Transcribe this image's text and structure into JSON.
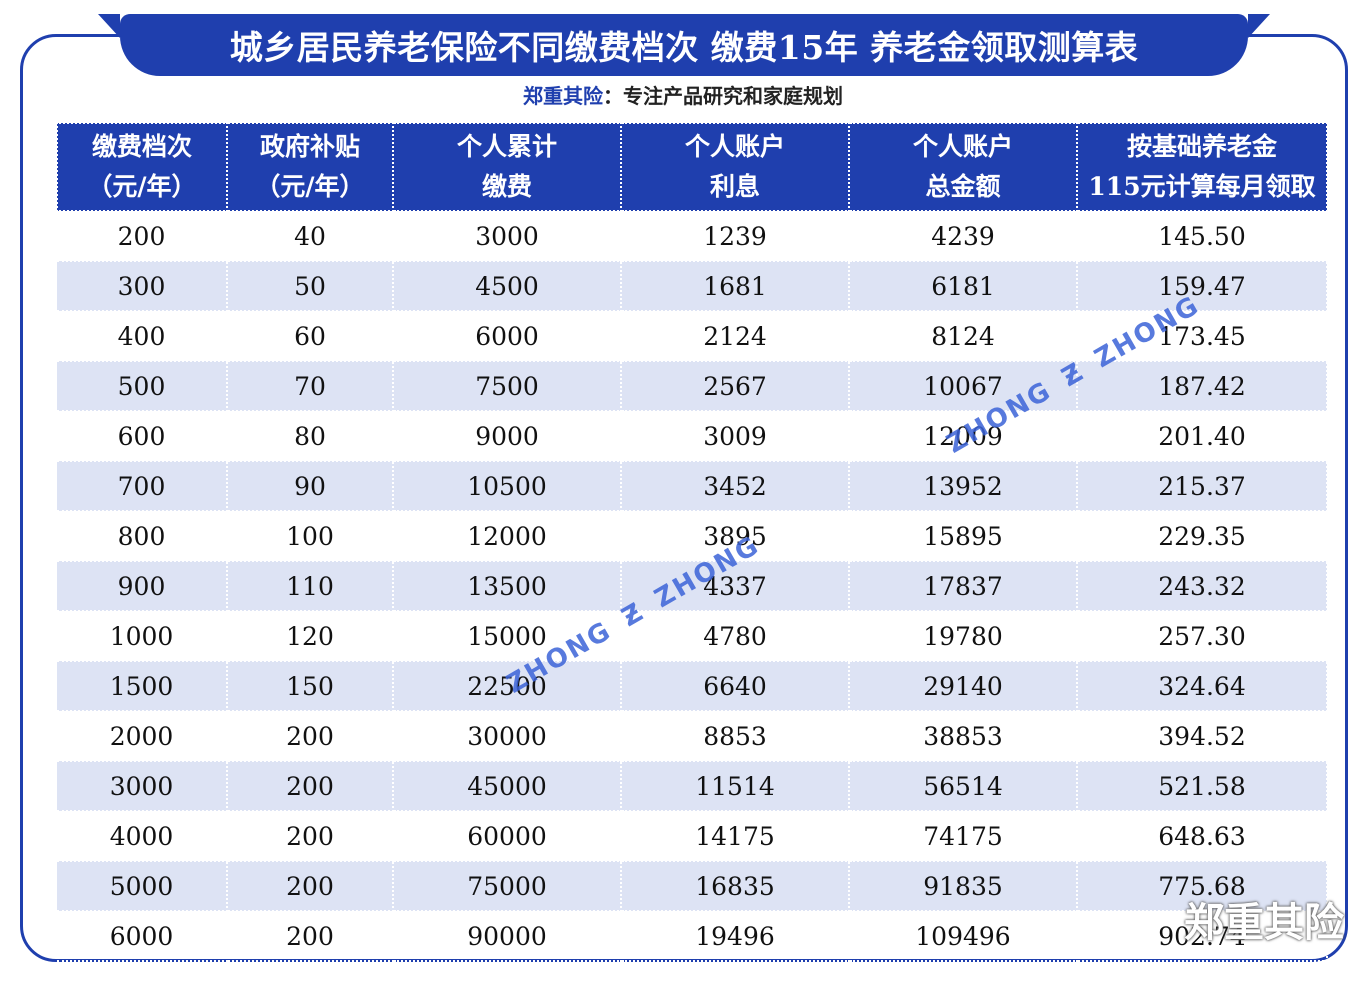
{
  "title": "城乡居民养老保险不同缴费档次  缴费15年  养老金领取测算表",
  "subtitle": {
    "brand": "郑重其险",
    "text": "：专注产品研究和家庭规划"
  },
  "table": {
    "headers": [
      {
        "line1": "缴费档次",
        "line2": "（元/年）"
      },
      {
        "line1": "政府补贴",
        "line2": "（元/年）"
      },
      {
        "line1": "个人累计",
        "line2": "缴费"
      },
      {
        "line1": "个人账户",
        "line2": "利息"
      },
      {
        "line1": "个人账户",
        "line2": "总金额"
      },
      {
        "line1": "按基础养老金",
        "line2": "115元计算每月领取"
      }
    ],
    "rows": [
      [
        "200",
        "40",
        "3000",
        "1239",
        "4239",
        "145.50"
      ],
      [
        "300",
        "50",
        "4500",
        "1681",
        "6181",
        "159.47"
      ],
      [
        "400",
        "60",
        "6000",
        "2124",
        "8124",
        "173.45"
      ],
      [
        "500",
        "70",
        "7500",
        "2567",
        "10067",
        "187.42"
      ],
      [
        "600",
        "80",
        "9000",
        "3009",
        "12009",
        "201.40"
      ],
      [
        "700",
        "90",
        "10500",
        "3452",
        "13952",
        "215.37"
      ],
      [
        "800",
        "100",
        "12000",
        "3895",
        "15895",
        "229.35"
      ],
      [
        "900",
        "110",
        "13500",
        "4337",
        "17837",
        "243.32"
      ],
      [
        "1000",
        "120",
        "15000",
        "4780",
        "19780",
        "257.30"
      ],
      [
        "1500",
        "150",
        "22500",
        "6640",
        "29140",
        "324.64"
      ],
      [
        "2000",
        "200",
        "30000",
        "8853",
        "38853",
        "394.52"
      ],
      [
        "3000",
        "200",
        "45000",
        "11514",
        "56514",
        "521.58"
      ],
      [
        "4000",
        "200",
        "60000",
        "14175",
        "74175",
        "648.63"
      ],
      [
        "5000",
        "200",
        "75000",
        "16835",
        "91835",
        "775.68"
      ],
      [
        "6000",
        "200",
        "90000",
        "19496",
        "109496",
        "902.74"
      ]
    ]
  },
  "watermark": "ZHONG",
  "corner_mark": "郑重其险",
  "colors": {
    "accent": "#1f3fae",
    "row_alt": "#dde3f4"
  }
}
